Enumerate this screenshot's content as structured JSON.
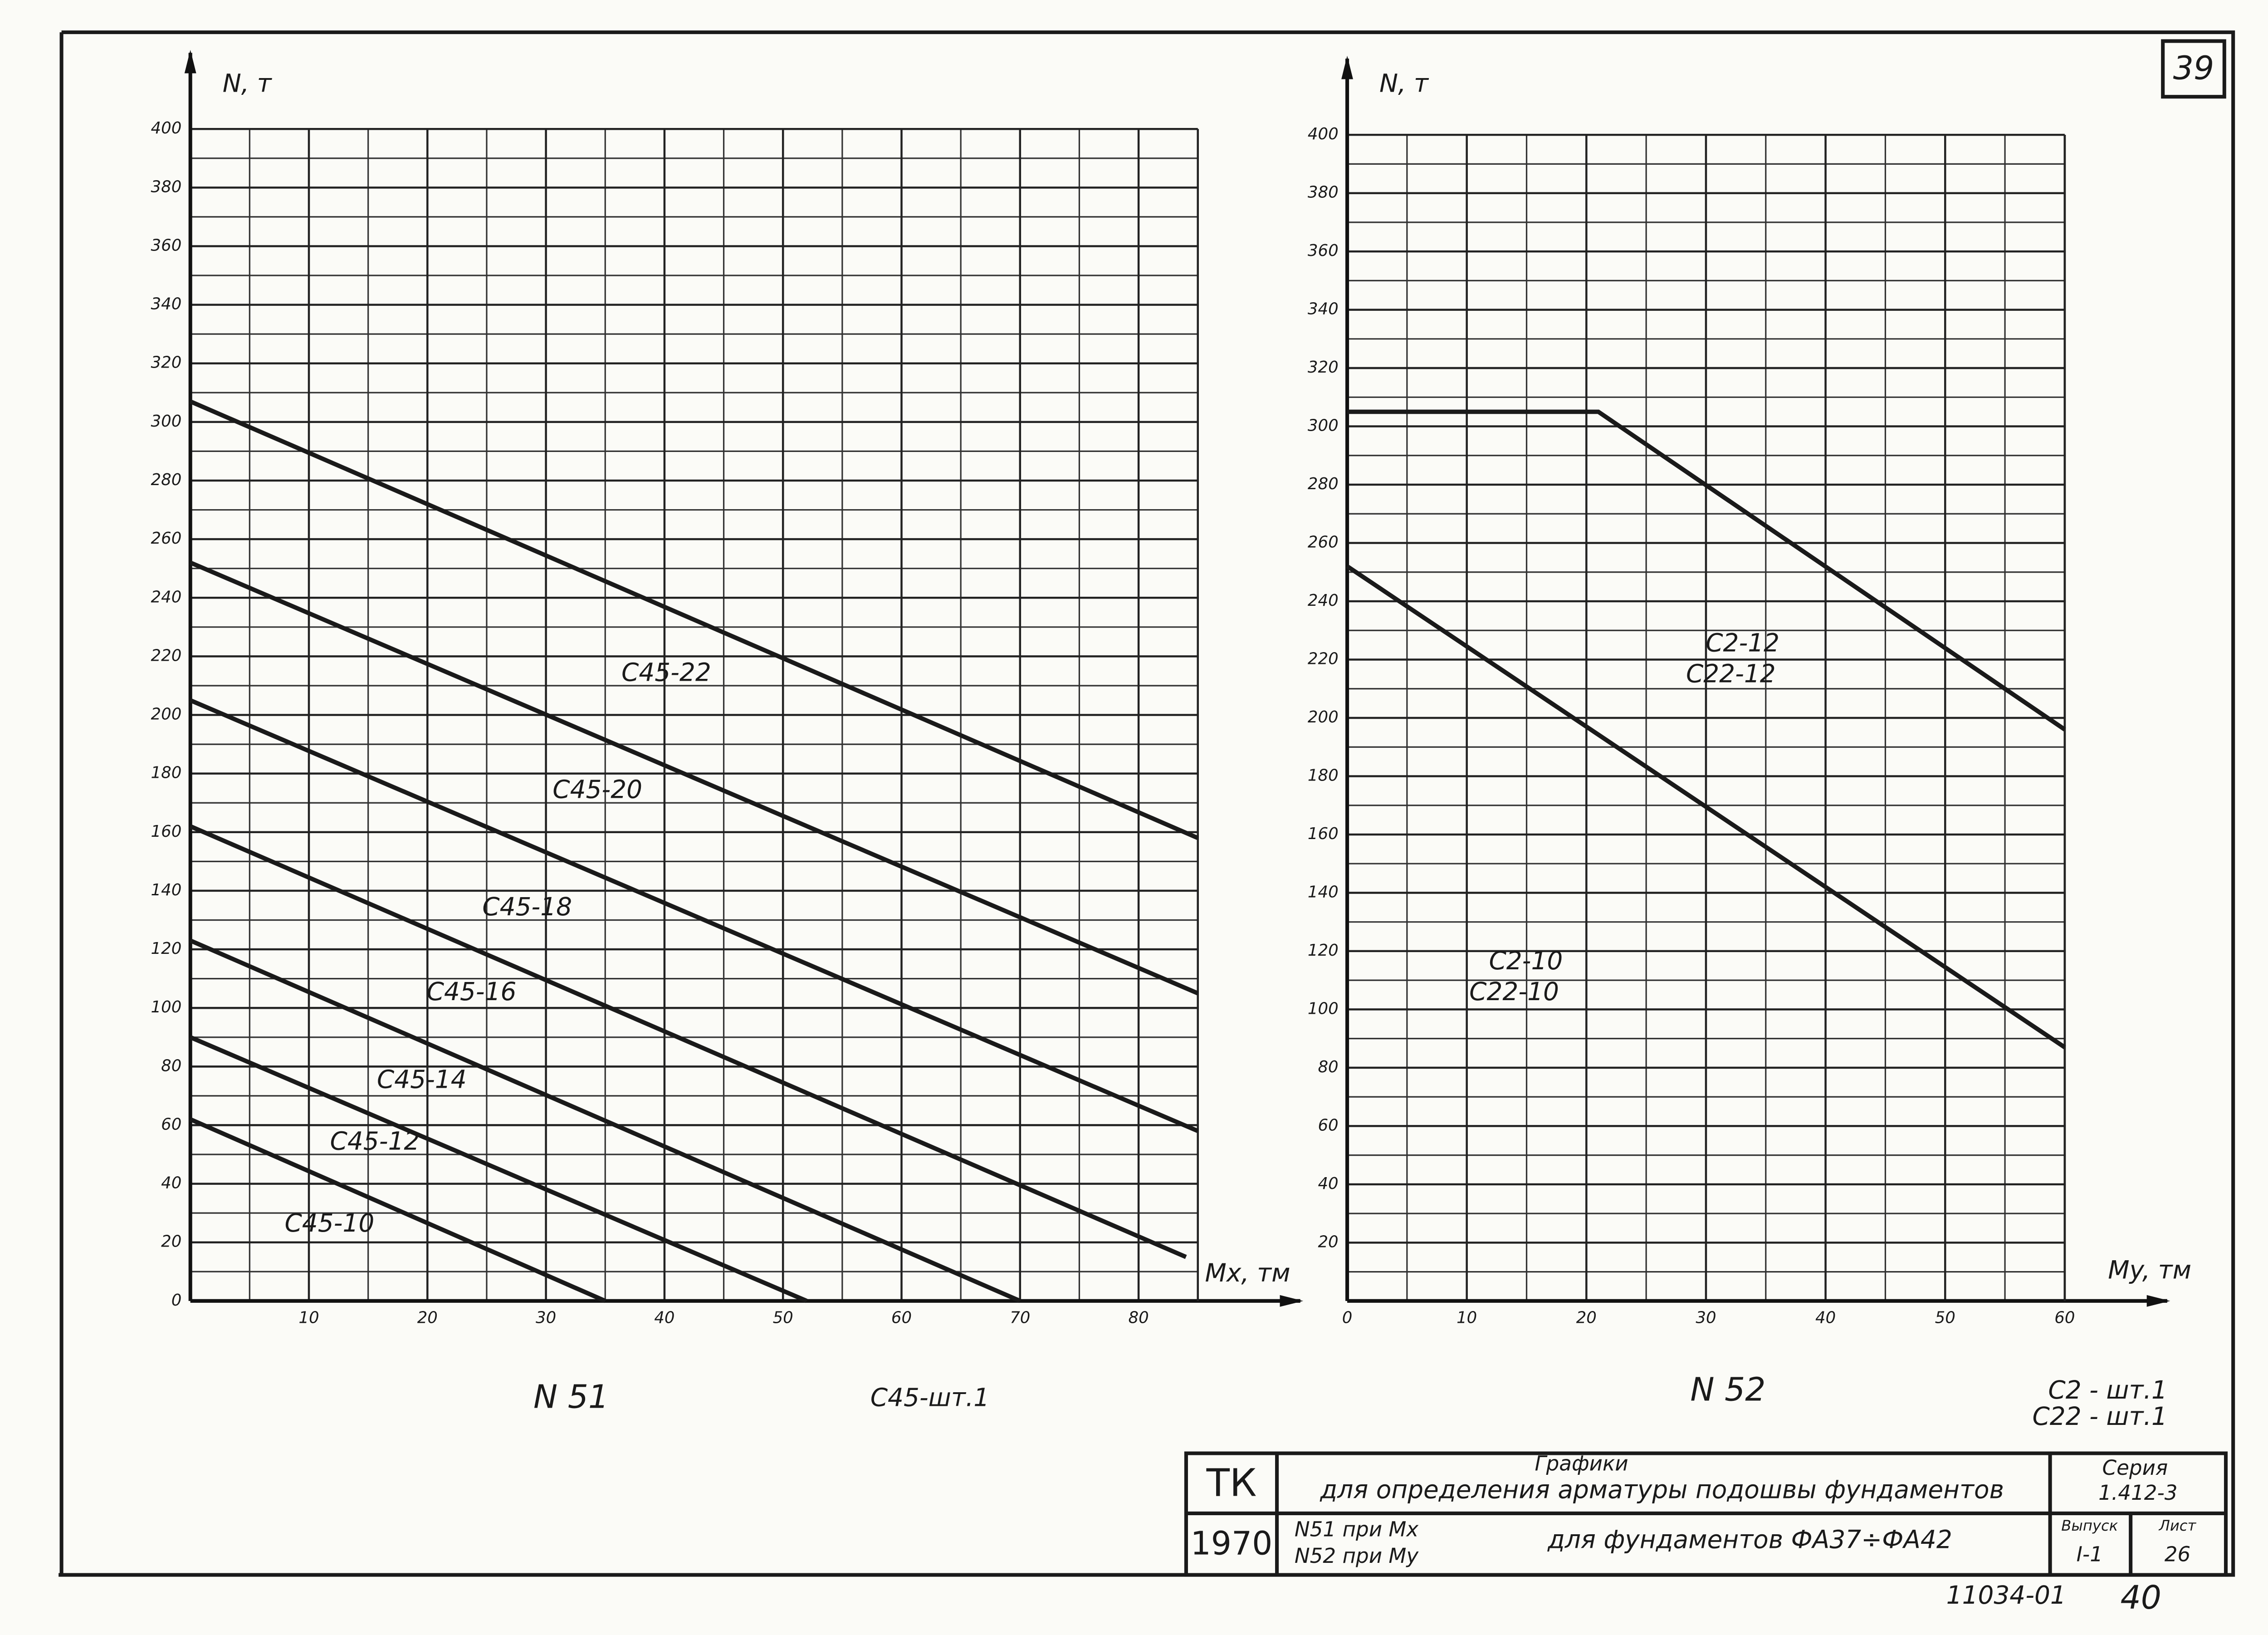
{
  "page_number": "39",
  "chart_data": [
    {
      "type": "line",
      "caption": "N 51",
      "note": "C45-шт.1",
      "ylabel": "N, т",
      "xlabel": "Mx, тм",
      "xlim": [
        0,
        85
      ],
      "xticks": [
        10,
        20,
        30,
        40,
        50,
        60,
        70,
        80
      ],
      "ylim": [
        0,
        400
      ],
      "yticks": [
        0,
        20,
        40,
        60,
        80,
        100,
        120,
        140,
        160,
        180,
        200,
        220,
        240,
        260,
        280,
        300,
        320,
        340,
        360,
        380,
        400
      ],
      "grid": true,
      "series": [
        {
          "labels": [
            "C45-22"
          ],
          "color": "#1a1a1a",
          "x": [
            0,
            85
          ],
          "values": [
            307,
            158
          ]
        },
        {
          "labels": [
            "C45-20"
          ],
          "color": "#1a1a1a",
          "x": [
            0,
            85
          ],
          "values": [
            252,
            105
          ]
        },
        {
          "labels": [
            "C45-18"
          ],
          "color": "#1a1a1a",
          "x": [
            0,
            85
          ],
          "values": [
            205,
            58
          ]
        },
        {
          "labels": [
            "C45-16"
          ],
          "color": "#1a1a1a",
          "x": [
            0,
            84
          ],
          "values": [
            162,
            15
          ]
        },
        {
          "labels": [
            "C45-14"
          ],
          "color": "#1a1a1a",
          "x": [
            0,
            70
          ],
          "values": [
            123,
            0
          ]
        },
        {
          "labels": [
            "C45-12"
          ],
          "color": "#1a1a1a",
          "x": [
            0,
            52
          ],
          "values": [
            90,
            0
          ]
        },
        {
          "labels": [
            "C45-10"
          ],
          "color": "#1a1a1a",
          "x": [
            0,
            35
          ],
          "values": [
            62,
            0
          ]
        }
      ]
    },
    {
      "type": "line",
      "caption": "N 52",
      "note": [
        "C2 - шт.1",
        "C22 - шт.1"
      ],
      "ylabel": "N, т",
      "xlabel": "My, тм",
      "xlim": [
        0,
        60
      ],
      "xticks": [
        0,
        10,
        20,
        30,
        40,
        50,
        60
      ],
      "ylim": [
        0,
        400
      ],
      "yticks": [
        20,
        40,
        60,
        80,
        100,
        120,
        140,
        160,
        180,
        200,
        220,
        240,
        260,
        280,
        300,
        320,
        340,
        360,
        380,
        400
      ],
      "grid": true,
      "series": [
        {
          "labels": [
            "C2-12",
            "C22-12"
          ],
          "color": "#1a1a1a",
          "x": [
            0,
            21,
            60
          ],
          "values": [
            305,
            305,
            196
          ]
        },
        {
          "labels": [
            "C2-10",
            "C22-10"
          ],
          "color": "#1a1a1a",
          "x": [
            0,
            60
          ],
          "values": [
            252,
            87
          ]
        }
      ]
    }
  ],
  "title_block": {
    "org": "ТК",
    "year": "1970",
    "title": "Графики",
    "subtitle": "для определения арматуры подошвы фундаментов",
    "series_label": "Серия",
    "series_value": "1.412-3",
    "line1": "N51 при Mx",
    "line2": "N52 при My",
    "desc": "для фундаментов ФА37÷ФА42",
    "issue_label": "Выпуск",
    "issue_value": "I-1",
    "sheet_label": "Лист",
    "sheet_value": "26",
    "code": "11034-01",
    "number": "40"
  }
}
